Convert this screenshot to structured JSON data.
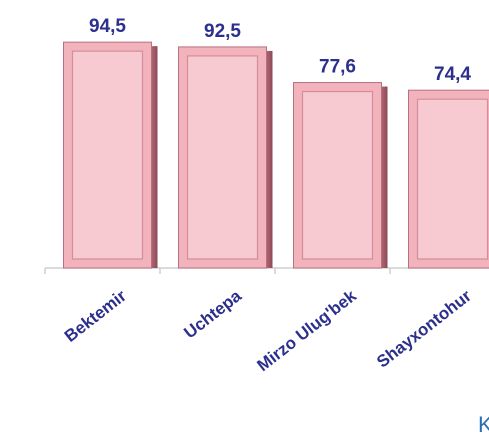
{
  "chart_data": {
    "type": "bar",
    "categories": [
      "Bektemir",
      "Uchtepa",
      "Mirzo Ulug'bek",
      "Shayxontohur"
    ],
    "values": [
      94.5,
      92.5,
      77.6,
      74.4
    ],
    "value_labels": [
      "94,5",
      "92,5",
      "77,6",
      "74,4"
    ],
    "color": "#f2b3bd",
    "ylim": [
      0,
      100
    ],
    "annotation": "K"
  }
}
